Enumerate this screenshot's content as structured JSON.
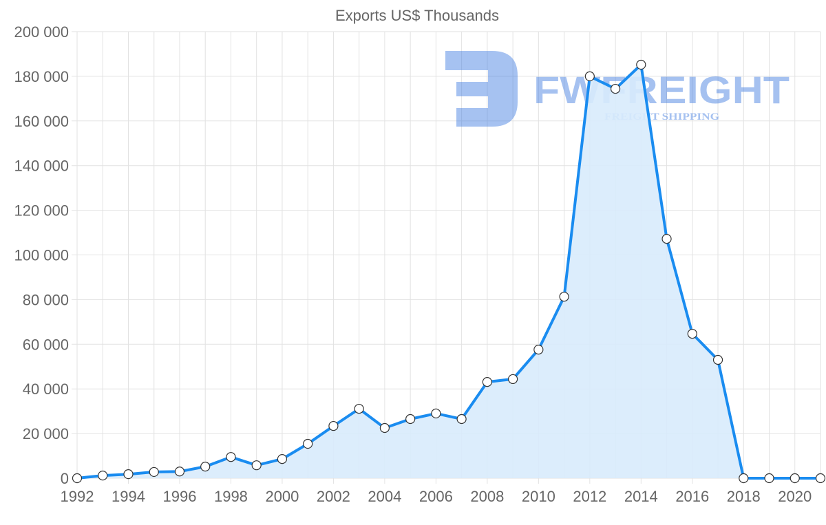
{
  "chart_data": {
    "type": "area",
    "title": "Exports US$ Thousands",
    "xlabel": "",
    "ylabel": "",
    "ylim": [
      0,
      200000
    ],
    "xlim": [
      1992,
      2021
    ],
    "grid": true,
    "yticks": [
      "0",
      "20 000",
      "40 000",
      "60 000",
      "80 000",
      "100 000",
      "120 000",
      "140 000",
      "160 000",
      "180 000",
      "200 000"
    ],
    "xticks": [
      "1992",
      "1994",
      "1996",
      "1998",
      "2000",
      "2002",
      "2004",
      "2006",
      "2008",
      "2010",
      "2012",
      "2014",
      "2016",
      "2018",
      "2020"
    ],
    "x": [
      1992,
      1993,
      1994,
      1995,
      1996,
      1997,
      1998,
      1999,
      2000,
      2001,
      2002,
      2003,
      2004,
      2005,
      2006,
      2007,
      2008,
      2009,
      2010,
      2011,
      2012,
      2013,
      2014,
      2015,
      2016,
      2017,
      2018,
      2019,
      2020,
      2021
    ],
    "series": [
      {
        "name": "Exports US$ Thousands",
        "values": [
          0,
          1200,
          1800,
          2800,
          3000,
          5200,
          9500,
          5800,
          8600,
          15400,
          23400,
          31100,
          22500,
          26500,
          29000,
          26500,
          43100,
          44400,
          57600,
          81300,
          180000,
          174400,
          185200,
          107200,
          64700,
          53000,
          0,
          0,
          0,
          0
        ]
      }
    ],
    "colors": {
      "line": "#1a8cf0",
      "fill": "#d8ebfc",
      "point_fill": "#ffffff",
      "point_stroke": "#333333"
    }
  },
  "watermark": {
    "brand": "FWFREIGHT",
    "tagline": "FREIGHT SHIPPING"
  }
}
